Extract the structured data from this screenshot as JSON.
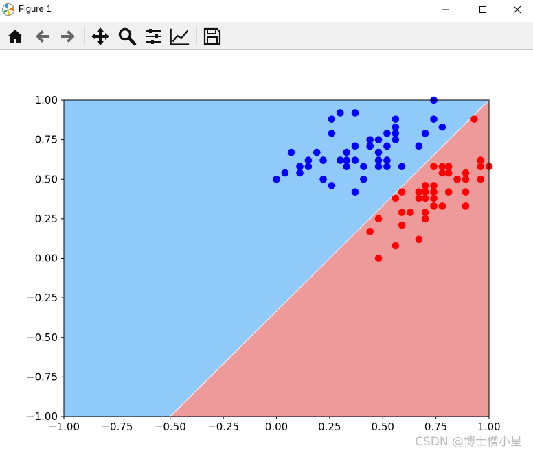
{
  "window": {
    "title": "Figure 1"
  },
  "window_controls": {
    "minimize": "—",
    "maximize": "☐",
    "close": "✕"
  },
  "toolbar": {
    "tools": [
      {
        "name": "home-icon"
      },
      {
        "name": "back-arrow-icon"
      },
      {
        "name": "forward-arrow-icon"
      },
      {
        "name": "pan-icon"
      },
      {
        "name": "zoom-icon"
      },
      {
        "name": "subplots-config-icon"
      },
      {
        "name": "axes-edit-icon"
      },
      {
        "name": "save-icon"
      }
    ]
  },
  "watermark": "CSDN @博士僧小星",
  "colors": {
    "blue_region": "#90caf9",
    "red_region": "#ef9a9a",
    "blue_points": "#0000ff",
    "red_points": "#ff0000"
  },
  "chart_data": {
    "type": "scatter",
    "xlim": [
      -1.0,
      1.0
    ],
    "ylim": [
      -1.0,
      1.0
    ],
    "x_ticks": [
      "−1.00",
      "−0.75",
      "−0.50",
      "−0.25",
      "0.00",
      "0.25",
      "0.50",
      "0.75",
      "1.00"
    ],
    "y_ticks": [
      "−1.00",
      "−0.75",
      "−0.50",
      "−0.25",
      "0.00",
      "0.25",
      "0.50",
      "0.75",
      "1.00"
    ],
    "decision_boundary": [
      [
        -0.5,
        -1.0
      ],
      [
        1.0,
        1.0
      ]
    ],
    "series": [
      {
        "color": "#0000ff",
        "points": [
          [
            0.0,
            0.5
          ],
          [
            0.04,
            0.54
          ],
          [
            0.07,
            0.67
          ],
          [
            0.11,
            0.58
          ],
          [
            0.11,
            0.54
          ],
          [
            0.15,
            0.62
          ],
          [
            0.15,
            0.58
          ],
          [
            0.19,
            0.67
          ],
          [
            0.22,
            0.62
          ],
          [
            0.22,
            0.5
          ],
          [
            0.26,
            0.88
          ],
          [
            0.26,
            0.79
          ],
          [
            0.26,
            0.46
          ],
          [
            0.3,
            0.92
          ],
          [
            0.3,
            0.62
          ],
          [
            0.33,
            0.67
          ],
          [
            0.33,
            0.62
          ],
          [
            0.33,
            0.58
          ],
          [
            0.37,
            0.92
          ],
          [
            0.37,
            0.71
          ],
          [
            0.37,
            0.62
          ],
          [
            0.37,
            0.42
          ],
          [
            0.41,
            0.58
          ],
          [
            0.41,
            0.5
          ],
          [
            0.44,
            0.75
          ],
          [
            0.44,
            0.71
          ],
          [
            0.48,
            0.75
          ],
          [
            0.48,
            0.67
          ],
          [
            0.48,
            0.62
          ],
          [
            0.48,
            0.58
          ],
          [
            0.52,
            0.79
          ],
          [
            0.52,
            0.71
          ],
          [
            0.52,
            0.62
          ],
          [
            0.52,
            0.58
          ],
          [
            0.56,
            0.88
          ],
          [
            0.56,
            0.83
          ],
          [
            0.56,
            0.79
          ],
          [
            0.56,
            0.75
          ],
          [
            0.59,
            0.58
          ],
          [
            0.67,
            0.71
          ],
          [
            0.7,
            0.79
          ],
          [
            0.74,
            1.0
          ],
          [
            0.74,
            0.88
          ],
          [
            0.78,
            0.83
          ]
        ]
      },
      {
        "color": "#ff0000",
        "points": [
          [
            0.44,
            0.17
          ],
          [
            0.48,
            0.25
          ],
          [
            0.48,
            0.0
          ],
          [
            0.56,
            0.38
          ],
          [
            0.56,
            0.08
          ],
          [
            0.59,
            0.42
          ],
          [
            0.59,
            0.29
          ],
          [
            0.59,
            0.21
          ],
          [
            0.63,
            0.29
          ],
          [
            0.67,
            0.42
          ],
          [
            0.67,
            0.38
          ],
          [
            0.67,
            0.12
          ],
          [
            0.7,
            0.46
          ],
          [
            0.7,
            0.42
          ],
          [
            0.7,
            0.38
          ],
          [
            0.7,
            0.29
          ],
          [
            0.7,
            0.25
          ],
          [
            0.74,
            0.58
          ],
          [
            0.74,
            0.46
          ],
          [
            0.74,
            0.42
          ],
          [
            0.74,
            0.38
          ],
          [
            0.74,
            0.33
          ],
          [
            0.78,
            0.58
          ],
          [
            0.78,
            0.54
          ],
          [
            0.78,
            0.33
          ],
          [
            0.81,
            0.58
          ],
          [
            0.81,
            0.54
          ],
          [
            0.81,
            0.42
          ],
          [
            0.85,
            0.5
          ],
          [
            0.89,
            0.54
          ],
          [
            0.89,
            0.5
          ],
          [
            0.89,
            0.42
          ],
          [
            0.89,
            0.33
          ],
          [
            0.93,
            0.88
          ],
          [
            0.96,
            0.62
          ],
          [
            0.96,
            0.58
          ],
          [
            0.96,
            0.5
          ],
          [
            1.0,
            0.58
          ]
        ]
      }
    ]
  }
}
